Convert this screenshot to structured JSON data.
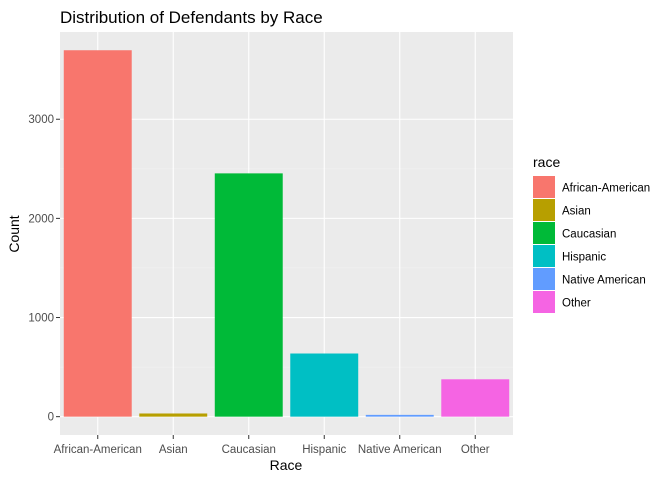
{
  "chart_data": {
    "type": "bar",
    "title": "Distribution of Defendants by Race",
    "xlabel": "Race",
    "ylabel": "Count",
    "categories": [
      "African-American",
      "Asian",
      "Caucasian",
      "Hispanic",
      "Native American",
      "Other"
    ],
    "values": [
      3696,
      32,
      2454,
      637,
      18,
      377
    ],
    "colors": [
      "#F8766D",
      "#B79F00",
      "#00BA38",
      "#00BFC4",
      "#619CFF",
      "#F564E3"
    ],
    "ylim": [
      -185,
      3880
    ],
    "yticks": [
      0,
      1000,
      2000,
      3000
    ],
    "ytick_labels": [
      "0",
      "1000",
      "2000",
      "3000"
    ],
    "grid": true,
    "background": "#EBEBEB",
    "legend": {
      "title": "race",
      "placement": "right",
      "entries": [
        "African-American",
        "Asian",
        "Caucasian",
        "Hispanic",
        "Native American",
        "Other"
      ]
    }
  }
}
